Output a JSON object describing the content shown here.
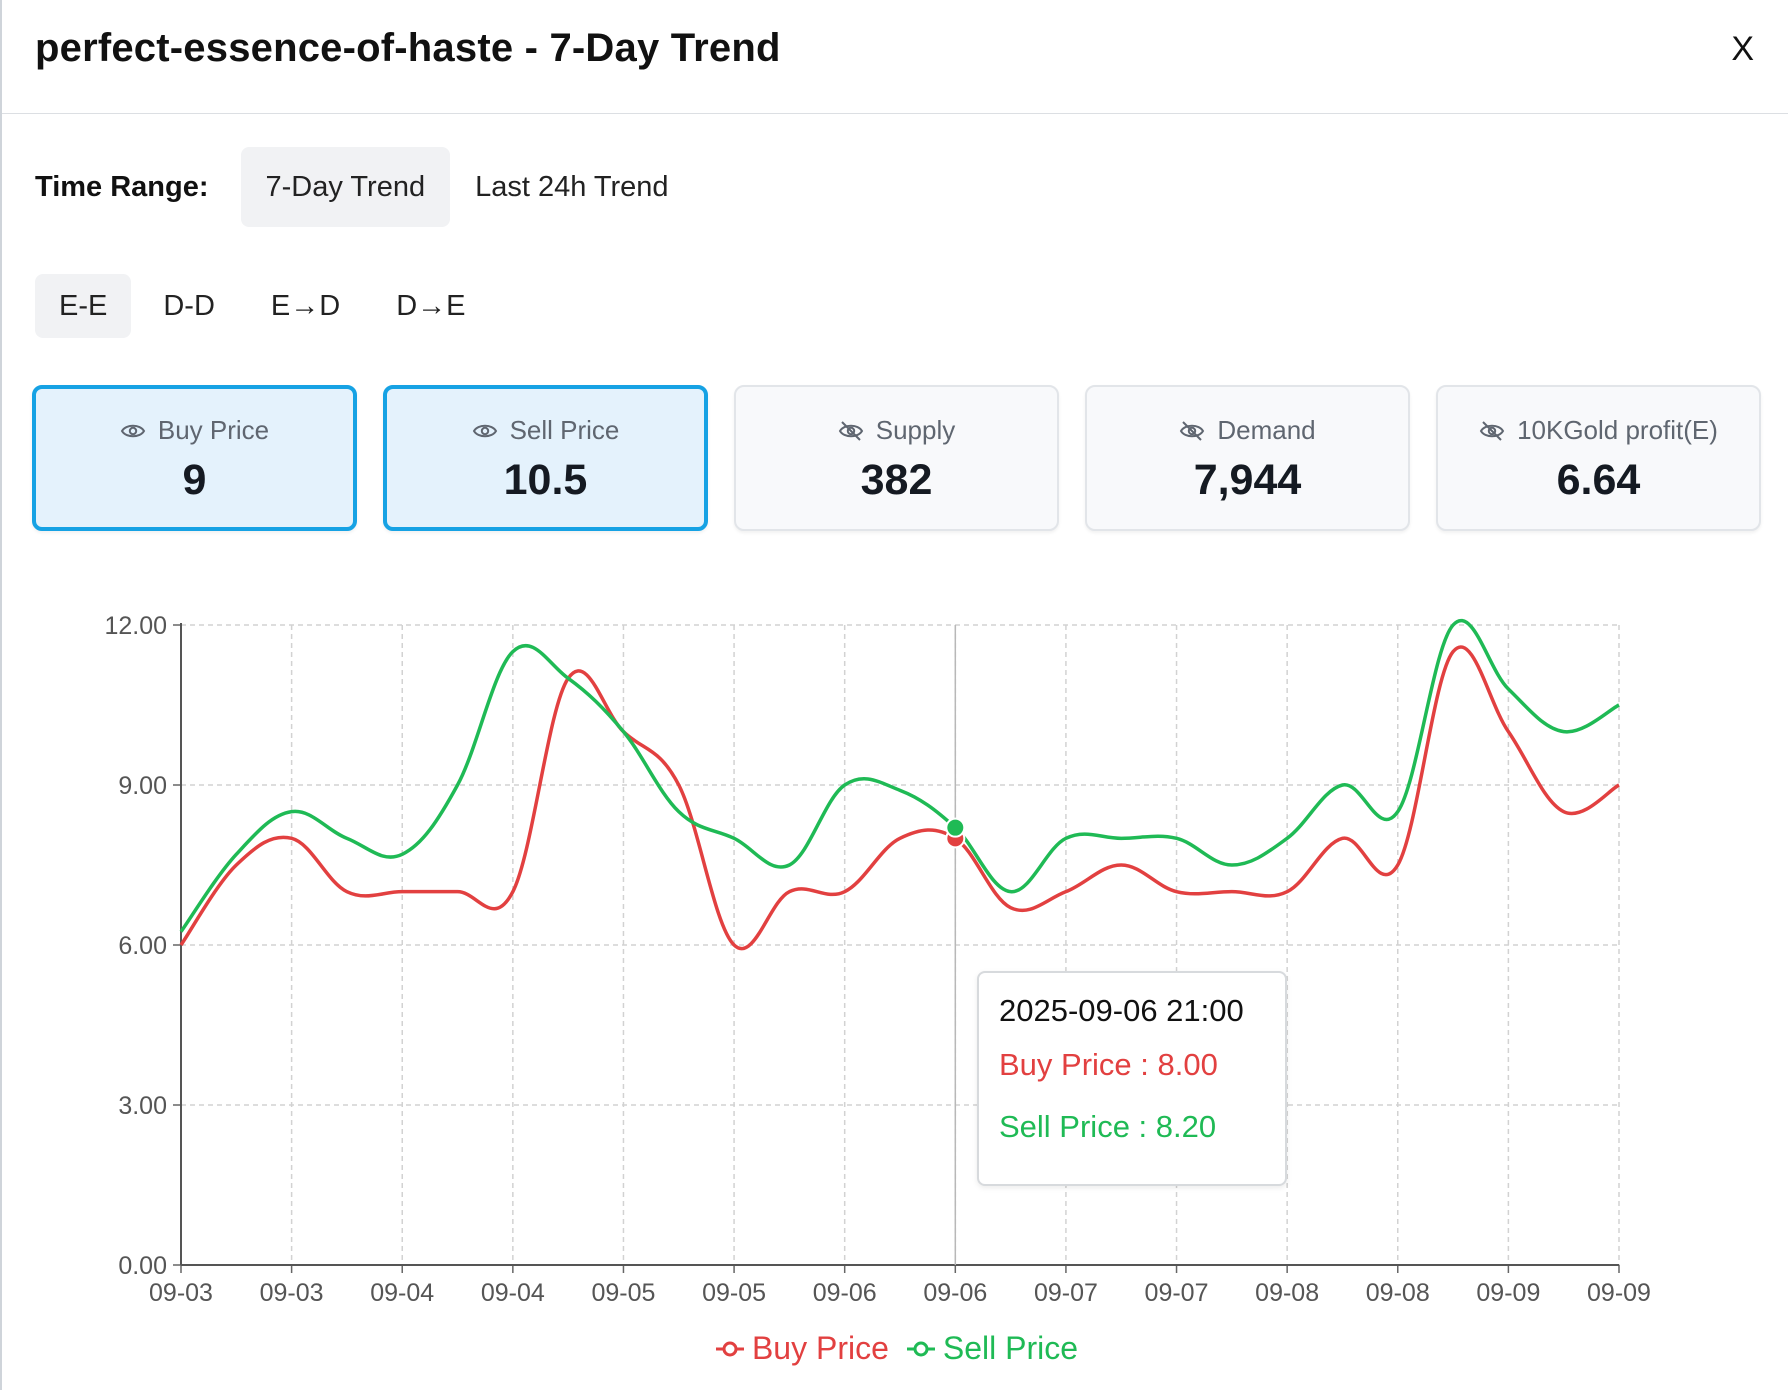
{
  "header": {
    "title": "perfect-essence-of-haste - 7-Day Trend",
    "close_label": "X"
  },
  "time_range": {
    "label": "Time Range:",
    "tabs": [
      "7-Day Trend",
      "Last 24h Trend"
    ],
    "active": 0
  },
  "modes": {
    "items": [
      "E-E",
      "D-D",
      "E→D",
      "D→E"
    ],
    "active": 0
  },
  "cards": [
    {
      "label": "Buy Price",
      "value": "9",
      "icon": "eye-icon",
      "selected": true
    },
    {
      "label": "Sell Price",
      "value": "10.5",
      "icon": "eye-icon",
      "selected": true
    },
    {
      "label": "Supply",
      "value": "382",
      "icon": "eye-off-icon",
      "selected": false
    },
    {
      "label": "Demand",
      "value": "7,944",
      "icon": "eye-off-icon",
      "selected": false
    },
    {
      "label": "10KGold profit(E)",
      "value": "6.64",
      "icon": "eye-off-icon",
      "selected": false
    }
  ],
  "colors": {
    "buy": "#e24040",
    "sell": "#1fba55",
    "selected_border": "#16a2e4",
    "selected_bg": "#e4f2fc"
  },
  "tooltip": {
    "time": "2025-09-06 21:00",
    "buy": "Buy Price : 8.00",
    "sell": "Sell Price : 8.20"
  },
  "chart_data": {
    "type": "line",
    "x_labels": [
      "09-03",
      "09-03",
      "09-04",
      "09-04",
      "09-05",
      "09-05",
      "09-06",
      "09-06",
      "09-07",
      "09-07",
      "09-08",
      "09-08",
      "09-09",
      "09-09"
    ],
    "y_ticks": [
      "0.00",
      "3.00",
      "6.00",
      "9.00",
      "12.00"
    ],
    "ylim": [
      0,
      12
    ],
    "grid": true,
    "legend_position": "bottom",
    "highlight_index": 14,
    "series": [
      {
        "name": "Buy Price",
        "color": "#e24040",
        "values": [
          6.0,
          7.5,
          8.0,
          7.0,
          7.0,
          7.0,
          7.0,
          11.0,
          10.0,
          9.0,
          6.0,
          7.0,
          7.0,
          8.0,
          8.0,
          6.7,
          7.0,
          7.5,
          7.0,
          7.0,
          7.0,
          8.0,
          7.5,
          11.5,
          10.0,
          8.5,
          9.0
        ]
      },
      {
        "name": "Sell Price",
        "color": "#1fba55",
        "values": [
          6.25,
          7.7,
          8.5,
          8.0,
          7.7,
          9.0,
          11.5,
          11.0,
          10.0,
          8.5,
          8.0,
          7.5,
          9.0,
          8.9,
          8.2,
          7.0,
          8.0,
          8.0,
          8.0,
          7.5,
          8.0,
          9.0,
          8.5,
          12.0,
          10.8,
          10.0,
          10.5
        ]
      }
    ]
  },
  "legend": [
    "Buy Price",
    "Sell Price"
  ]
}
